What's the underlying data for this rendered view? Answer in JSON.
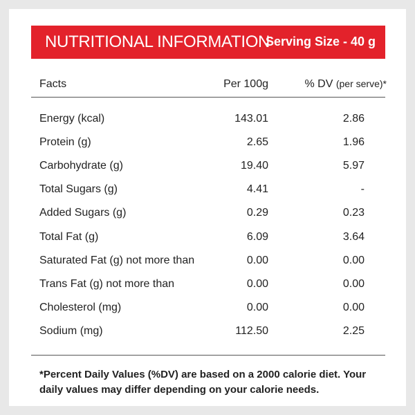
{
  "banner": {
    "title": "NUTRITIONAL INFORMATION",
    "serving": "Serving Size - 40 g",
    "color": "#e3222b"
  },
  "header": {
    "facts": "Facts",
    "per100": "Per 100g",
    "dv_main": "% DV",
    "dv_sub": "(per serve)*"
  },
  "rows": [
    {
      "name": "Energy (kcal)",
      "per100": "143.01",
      "dv": "2.86"
    },
    {
      "name": "Protein (g)",
      "per100": "2.65",
      "dv": "1.96"
    },
    {
      "name": "Carbohydrate (g)",
      "per100": "19.40",
      "dv": "5.97"
    },
    {
      "name": "Total Sugars (g)",
      "per100": "4.41",
      "dv": "-"
    },
    {
      "name": "Added Sugars (g)",
      "per100": "0.29",
      "dv": "0.23"
    },
    {
      "name": "Total Fat (g)",
      "per100": "6.09",
      "dv": "3.64"
    },
    {
      "name": "Saturated Fat (g) not more than",
      "per100": "0.00",
      "dv": "0.00"
    },
    {
      "name": "Trans Fat (g) not more than",
      "per100": "0.00",
      "dv": "0.00"
    },
    {
      "name": "Cholesterol (mg)",
      "per100": "0.00",
      "dv": "0.00"
    },
    {
      "name": "Sodium (mg)",
      "per100": "112.50",
      "dv": "2.25"
    }
  ],
  "footnote": "*Percent Daily Values (%DV) are based on a 2000 calorie diet. Your daily values may differ depending on your calorie needs."
}
